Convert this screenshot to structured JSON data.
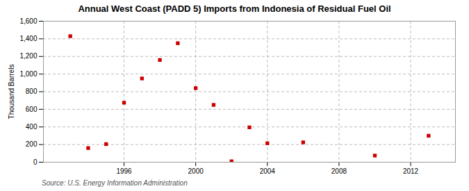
{
  "chart_data": {
    "type": "scatter",
    "title": "Annual West Coast (PADD 5) Imports from Indonesia of Residual Fuel Oil",
    "ylabel": "Thousand Barrels",
    "source": "Source: U.S. Energy Information Administration",
    "x": [
      1993,
      1994,
      1995,
      1996,
      1997,
      1998,
      1999,
      2000,
      2001,
      2002,
      2003,
      2004,
      2006,
      2010,
      2013
    ],
    "values": [
      1430,
      160,
      205,
      675,
      950,
      1160,
      1350,
      840,
      650,
      10,
      395,
      215,
      225,
      75,
      300
    ],
    "color": "#cc0000",
    "marker": "square",
    "xlim": [
      1991.5,
      2014.5
    ],
    "xticks": [
      1996,
      2000,
      2004,
      2008,
      2012
    ],
    "ylim": [
      0,
      1600
    ],
    "yticks": [
      0,
      200,
      400,
      600,
      800,
      {
        "value": 1000,
        "label": "1,000"
      },
      {
        "value": 1200,
        "label": "1,200"
      },
      {
        "value": 1400,
        "label": "1,400"
      },
      {
        "value": 1600,
        "label": "1,600"
      }
    ],
    "grid": true
  }
}
